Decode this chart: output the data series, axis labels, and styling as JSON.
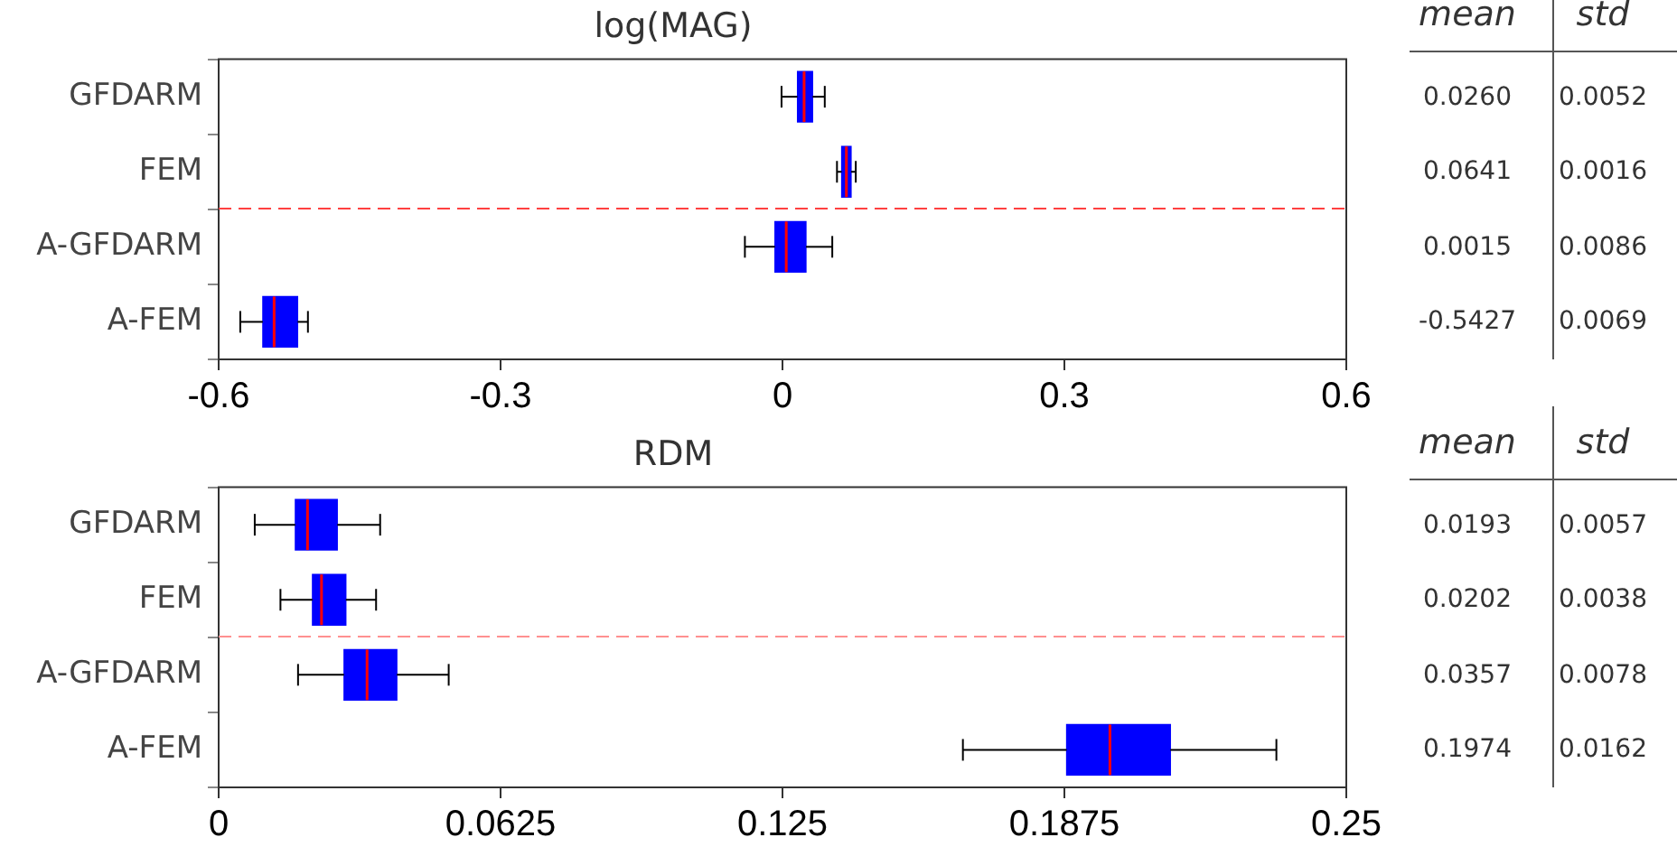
{
  "chart_data": [
    {
      "type": "box",
      "title": "log(MAG)",
      "orientation": "horizontal",
      "categories": [
        "GFDARM",
        "FEM",
        "A-GFDARM",
        "A-FEM"
      ],
      "color": "#0000ff",
      "xlim": [
        -0.6,
        0.6
      ],
      "xticks": [
        -0.6,
        -0.3,
        0,
        0.3,
        0.6
      ],
      "grid": false,
      "boxes": [
        {
          "low": -0.001,
          "q1": 0.016,
          "median": 0.023,
          "q3": 0.032,
          "high": 0.045
        },
        {
          "low": 0.058,
          "q1": 0.063,
          "median": 0.068,
          "q3": 0.073,
          "high": 0.078
        },
        {
          "low": -0.04,
          "q1": -0.008,
          "median": 0.004,
          "q3": 0.025,
          "high": 0.053
        },
        {
          "low": -0.577,
          "q1": -0.553,
          "median": -0.541,
          "q3": -0.516,
          "high": -0.505
        }
      ]
    },
    {
      "type": "other",
      "categories": [
        "mean",
        "std"
      ],
      "cell_labels": [
        [
          "0.0260",
          "0.0052"
        ],
        [
          "0.0641",
          "0.0016"
        ],
        [
          "0.0015",
          "0.0086"
        ],
        [
          "-0.5427",
          "0.0069"
        ]
      ]
    },
    {
      "type": "box",
      "title": "RDM",
      "orientation": "horizontal",
      "categories": [
        "GFDARM",
        "FEM",
        "A-GFDARM",
        "A-FEM"
      ],
      "color": "#0000ff",
      "xlim": [
        0,
        0.25
      ],
      "xticks": [
        0,
        0.0625,
        0.125,
        0.1875,
        0.25
      ],
      "grid": false,
      "boxes": [
        {
          "low": 0.008,
          "q1": 0.017,
          "median": 0.0197,
          "q3": 0.0263,
          "high": 0.0358
        },
        {
          "low": 0.0137,
          "q1": 0.0208,
          "median": 0.0228,
          "q3": 0.0282,
          "high": 0.0349
        },
        {
          "low": 0.0176,
          "q1": 0.0278,
          "median": 0.0329,
          "q3": 0.0395,
          "high": 0.051
        },
        {
          "low": 0.165,
          "q1": 0.188,
          "median": 0.1976,
          "q3": 0.211,
          "high": 0.2345
        }
      ]
    },
    {
      "type": "other",
      "categories": [
        "mean",
        "std"
      ],
      "cell_labels": [
        [
          "0.0193",
          "0.0057"
        ],
        [
          "0.0202",
          "0.0038"
        ],
        [
          "0.0357",
          "0.0078"
        ],
        [
          "0.1974",
          "0.0162"
        ]
      ]
    }
  ]
}
